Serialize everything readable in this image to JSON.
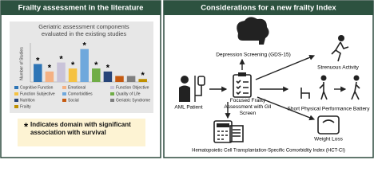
{
  "left_panel": {
    "title": "Frailty assessment in the literature",
    "note": "Indicates domain with significant association with survival"
  },
  "chart_data": {
    "type": "bar",
    "title": "Geriatric assessment components evaluated in the existing studies",
    "y_label": "Number of Studies",
    "categories": [
      "Cognitive Function",
      "Emotional",
      "Function Objective",
      "Function Subjective",
      "Comorbidities",
      "Quality of Life",
      "Nutrition",
      "Social",
      "Geriatric Syndrome",
      "Frailty"
    ],
    "values": [
      12,
      7,
      13,
      9,
      22,
      9,
      7,
      4,
      4,
      2
    ],
    "colors": [
      "#2e75b6",
      "#f4b183",
      "#c9c3d9",
      "#f5c242",
      "#6fa8dc",
      "#70ad47",
      "#264478",
      "#c55a11",
      "#7f7f7f",
      "#bf9000"
    ],
    "significant": [
      true,
      true,
      true,
      true,
      true,
      true,
      true,
      false,
      false,
      true
    ],
    "significance_marker": "*",
    "ylim": [
      0,
      25
    ]
  },
  "right_panel": {
    "title": "Considerations for a new frailty Index",
    "nodes": [
      {
        "label": "AML Patient"
      },
      {
        "label": "Focused Frailty Assessment with GII Screen"
      },
      {
        "label": "Depression Screening (GDS-15)"
      },
      {
        "label": "Strenuous Activity"
      },
      {
        "label": "Short Physical Performance Battery"
      },
      {
        "label": "Weight Loss"
      },
      {
        "label": "Hematopoietic Cell Transplantation-Specific Comorbidity Index (HCT-CI)"
      }
    ]
  }
}
